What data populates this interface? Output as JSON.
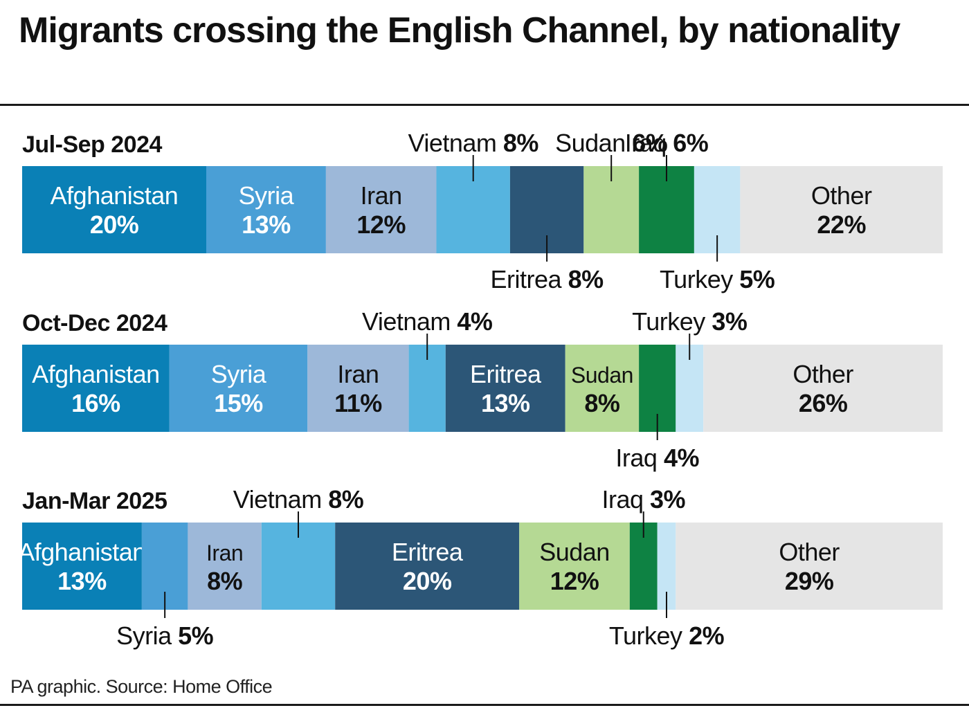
{
  "title": "Migrants crossing the English Channel, by nationality",
  "source": "PA graphic. Source: Home Office",
  "chart_data": {
    "type": "bar",
    "stacked": true,
    "orientation": "horizontal",
    "unit": "%",
    "colors": {
      "Afghanistan": "#0a80b6",
      "Syria": "#4a9fd6",
      "Iran": "#9db8d9",
      "Vietnam": "#56b4df",
      "Eritrea": "#2c5677",
      "Sudan": "#b5d994",
      "Iraq": "#0e8243",
      "Turkey": "#c5e5f5",
      "Other": "#e5e5e5"
    },
    "panels": [
      {
        "period": "Jul-Sep 2024",
        "segments": [
          {
            "name": "Afghanistan",
            "value": 20,
            "label": "inside"
          },
          {
            "name": "Syria",
            "value": 13,
            "label": "inside"
          },
          {
            "name": "Iran",
            "value": 12,
            "label": "inside"
          },
          {
            "name": "Vietnam",
            "value": 8,
            "label": "above"
          },
          {
            "name": "Eritrea",
            "value": 8,
            "label": "below"
          },
          {
            "name": "Sudan",
            "value": 6,
            "label": "above"
          },
          {
            "name": "Iraq",
            "value": 6,
            "label": "above"
          },
          {
            "name": "Turkey",
            "value": 5,
            "label": "below"
          },
          {
            "name": "Other",
            "value": 22,
            "label": "inside"
          }
        ]
      },
      {
        "period": "Oct-Dec 2024",
        "segments": [
          {
            "name": "Afghanistan",
            "value": 16,
            "label": "inside"
          },
          {
            "name": "Syria",
            "value": 15,
            "label": "inside"
          },
          {
            "name": "Iran",
            "value": 11,
            "label": "inside"
          },
          {
            "name": "Vietnam",
            "value": 4,
            "label": "above"
          },
          {
            "name": "Eritrea",
            "value": 13,
            "label": "inside"
          },
          {
            "name": "Sudan",
            "value": 8,
            "label": "inside"
          },
          {
            "name": "Iraq",
            "value": 4,
            "label": "below"
          },
          {
            "name": "Turkey",
            "value": 3,
            "label": "above"
          },
          {
            "name": "Other",
            "value": 26,
            "label": "inside"
          }
        ]
      },
      {
        "period": "Jan-Mar 2025",
        "segments": [
          {
            "name": "Afghanistan",
            "value": 13,
            "label": "inside"
          },
          {
            "name": "Syria",
            "value": 5,
            "label": "below"
          },
          {
            "name": "Iran",
            "value": 8,
            "label": "inside"
          },
          {
            "name": "Vietnam",
            "value": 8,
            "label": "above"
          },
          {
            "name": "Eritrea",
            "value": 20,
            "label": "inside"
          },
          {
            "name": "Sudan",
            "value": 12,
            "label": "inside"
          },
          {
            "name": "Iraq",
            "value": 3,
            "label": "above"
          },
          {
            "name": "Turkey",
            "value": 2,
            "label": "below"
          },
          {
            "name": "Other",
            "value": 29,
            "label": "inside"
          }
        ]
      }
    ]
  }
}
